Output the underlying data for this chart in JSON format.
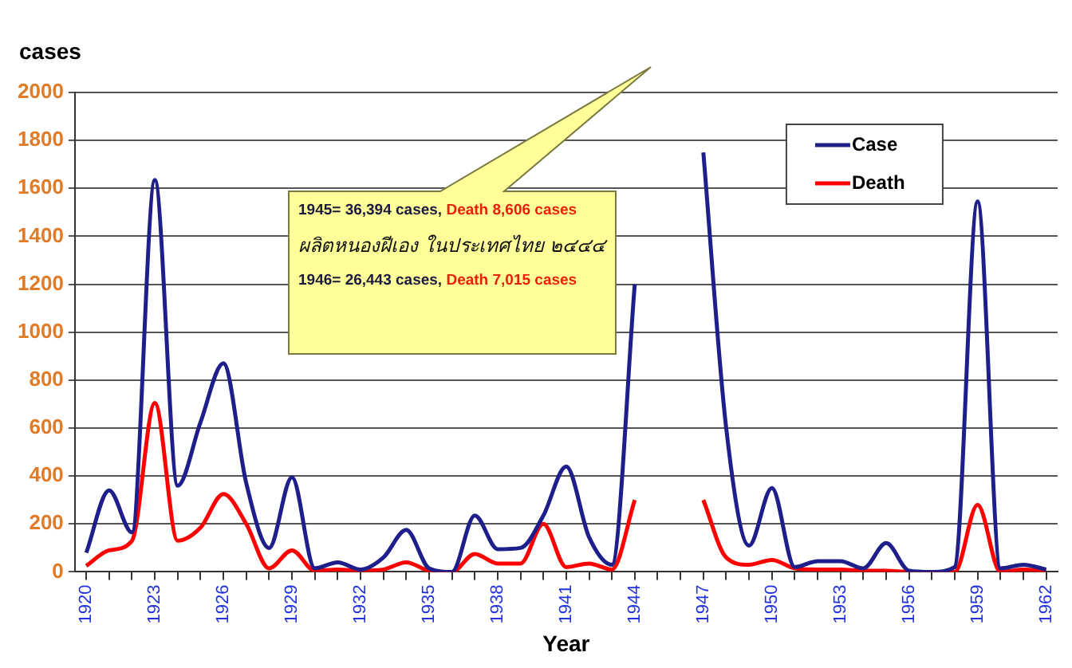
{
  "chart_data": {
    "type": "line",
    "ylabel": "cases",
    "xlabel": "Year",
    "categories": [
      "1920",
      null,
      null,
      "1923",
      null,
      null,
      "1926",
      null,
      null,
      "1929",
      null,
      null,
      "1932",
      null,
      null,
      "1935",
      null,
      null,
      "1938",
      null,
      null,
      "1941",
      null,
      null,
      "1944",
      null,
      null,
      "1947",
      null,
      null,
      "1950",
      null,
      null,
      "1953",
      null,
      null,
      "1956",
      null,
      null,
      "1959",
      null,
      null,
      "1962"
    ],
    "series": [
      {
        "name": "Case",
        "color": "#1f1f8c",
        "values": [
          80,
          340,
          165,
          1635,
          360,
          625,
          870,
          370,
          100,
          395,
          15,
          40,
          10,
          60,
          175,
          15,
          0,
          235,
          95,
          100,
          235,
          440,
          145,
          30,
          1200,
          null,
          null,
          1750,
          600,
          110,
          350,
          20,
          45,
          45,
          15,
          120,
          5,
          0,
          20,
          1545,
          15,
          30,
          10
        ]
      },
      {
        "name": "Death",
        "color": "#ff0000",
        "values": [
          25,
          90,
          130,
          705,
          130,
          185,
          325,
          200,
          15,
          90,
          5,
          10,
          5,
          10,
          40,
          5,
          0,
          75,
          35,
          35,
          200,
          20,
          35,
          10,
          300,
          null,
          null,
          300,
          60,
          30,
          50,
          15,
          10,
          10,
          5,
          5,
          0,
          0,
          0,
          280,
          0,
          10,
          5
        ]
      }
    ],
    "ylim": [
      0,
      2000
    ],
    "yticks": [
      0,
      200,
      400,
      600,
      800,
      1000,
      1200,
      1400,
      1600,
      1800,
      2000
    ],
    "grid": "y",
    "legend": "top right",
    "marker": "none",
    "line_style": "solid",
    "annotations": [
      "1945= 36,394 cases, Death 8,606 cases",
      "1946= 26,443 cases, Death 7,015 cases",
      "ผลิตหนองฝีเอง ในประเทศไทย ๒๔๔๔"
    ]
  }
}
